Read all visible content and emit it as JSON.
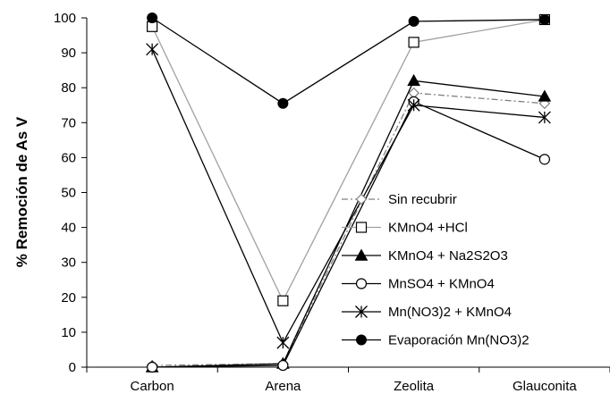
{
  "chart_data": {
    "type": "line",
    "categories": [
      "Carbon",
      "Arena",
      "Zeolita",
      "Glauconita"
    ],
    "ylabel": "% Remoción de As V",
    "xlabel": "",
    "ylim": [
      0,
      100
    ],
    "yticks": [
      0,
      10,
      20,
      30,
      40,
      50,
      60,
      70,
      80,
      90,
      100
    ],
    "grid": false,
    "legend_position": "bottom-right",
    "series": [
      {
        "name": "Sin recubrir",
        "values": [
          0.5,
          1,
          78.5,
          75.5
        ],
        "marker": "diamond-open",
        "line": "dashdot",
        "color": "#808080"
      },
      {
        "name": "KMnO4 +HCl",
        "values": [
          97.5,
          19,
          93,
          99.5
        ],
        "marker": "square-open",
        "line": "solid",
        "color": "#a0a0a0"
      },
      {
        "name": "KMnO4 + Na2S2O3",
        "values": [
          0,
          1,
          82,
          77.5
        ],
        "marker": "triangle-filled",
        "line": "solid",
        "color": "#000000"
      },
      {
        "name": "MnSO4 + KMnO4",
        "values": [
          0,
          0.5,
          76,
          59.5
        ],
        "marker": "circle-open",
        "line": "solid",
        "color": "#000000"
      },
      {
        "name": "Mn(NO3)2 + KMnO4",
        "values": [
          91,
          7,
          75,
          71.5
        ],
        "marker": "star",
        "line": "solid",
        "color": "#000000"
      },
      {
        "name": "Evaporación Mn(NO3)2",
        "values": [
          100,
          75.5,
          99,
          99.5
        ],
        "marker": "circle-filled",
        "line": "solid",
        "color": "#000000"
      }
    ]
  }
}
